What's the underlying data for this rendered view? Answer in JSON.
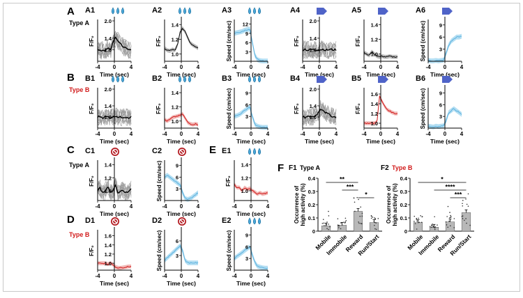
{
  "colors": {
    "black": "#000000",
    "gray_trace": "#9a9a9a",
    "typeB_red": "#d11a1a",
    "red_trace": "#e0605a",
    "speed_blue": "#76c3e8",
    "drop_blue": "#49a7d8",
    "arrow_blue": "#4f63c8",
    "stop_red": "#b3191f",
    "bar_gray": "#b8b8b8"
  },
  "icons": {
    "reward": "water-drop-icon",
    "start": "blue-arrow-icon",
    "stop": "no-entry-icon"
  },
  "rows": [
    {
      "id": "A",
      "label": "A",
      "type_label": "Type A",
      "type_color": "#000000"
    },
    {
      "id": "B",
      "label": "B",
      "type_label": "Type B",
      "type_color": "#d11a1a"
    },
    {
      "id": "C",
      "label": "C",
      "type_label": "Type A",
      "type_color": "#000000"
    },
    {
      "id": "D",
      "label": "D",
      "type_label": "Type B",
      "type_color": "#d11a1a"
    },
    {
      "id": "E",
      "label": "E",
      "type_label": "",
      "type_color": "#000000"
    },
    {
      "id": "F",
      "label": "F",
      "type_label": "",
      "type_color": "#000000"
    }
  ],
  "xlabel": "Time (sec)",
  "x_ticks": [
    "-4",
    "0",
    "4"
  ],
  "chart_data": [
    {
      "id": "A1",
      "type": "line",
      "event": "reward",
      "ylabel": "F/F₀",
      "yticks": [
        "1.0",
        "1.4",
        "2.0"
      ],
      "y_range": [
        0.6,
        2.0
      ],
      "traces": "gray+black",
      "mean": [
        1.0,
        0.95,
        1.0,
        0.97,
        1.05,
        0.98,
        1.3,
        1.4,
        1.3,
        1.2,
        1.1,
        1.05,
        1.0,
        1.0
      ]
    },
    {
      "id": "A2",
      "type": "line",
      "event": "reward",
      "ylabel": "F/F₀",
      "yticks": [
        "1.0",
        "1.2",
        "1.4"
      ],
      "y_range": [
        0.9,
        1.45
      ],
      "traces": "black-sem",
      "mean": [
        1.08,
        1.05,
        1.04,
        1.06,
        1.05,
        1.12,
        1.3,
        1.35,
        1.3,
        1.22,
        1.15,
        1.12,
        1.1,
        1.08
      ]
    },
    {
      "id": "A3",
      "type": "line",
      "event": "reward",
      "ylabel": "Speed (cm/sec)",
      "yticks": [
        "3",
        "6",
        "9",
        "12"
      ],
      "y_range": [
        0,
        13
      ],
      "traces": "blue",
      "mean": [
        9,
        9.2,
        9.4,
        9.6,
        10,
        10.2,
        10.4,
        6,
        2,
        0.5,
        0.2,
        0.1,
        0.1,
        0.1
      ]
    },
    {
      "id": "A4",
      "type": "line",
      "event": "start",
      "ylabel": "F/F₀",
      "yticks": [
        "1.0",
        "1.4",
        "2.0"
      ],
      "y_range": [
        0.6,
        2.0
      ],
      "traces": "gray+black",
      "mean": [
        1.0,
        1.02,
        0.98,
        1.0,
        1.01,
        0.99,
        1.0,
        1.0,
        1.02,
        0.98,
        1.0,
        1.01,
        1.0,
        1.0
      ]
    },
    {
      "id": "A5",
      "type": "line",
      "event": "start",
      "ylabel": "F/F₀",
      "yticks": [
        "1.0",
        "1.2",
        "1.4"
      ],
      "y_range": [
        0.9,
        1.45
      ],
      "traces": "black-sem",
      "mean": [
        1.02,
        1.0,
        0.98,
        1.03,
        1.0,
        0.97,
        0.96,
        0.97,
        0.96,
        0.96,
        0.97,
        0.96,
        0.96,
        0.96
      ]
    },
    {
      "id": "A6",
      "type": "line",
      "event": "start",
      "ylabel": "Speed (cm/sec)",
      "yticks": [
        "3",
        "6",
        "9"
      ],
      "y_range": [
        0,
        10
      ],
      "traces": "blue",
      "mean": [
        0.2,
        0.1,
        0.1,
        0.2,
        0.1,
        0.2,
        0.3,
        2,
        4,
        5,
        5.5,
        6,
        6,
        6.2
      ]
    },
    {
      "id": "B1",
      "type": "line",
      "event": "reward",
      "ylabel": "F/F₀",
      "yticks": [
        "1.0",
        "1.4",
        "2.0"
      ],
      "y_range": [
        0.6,
        2.0
      ],
      "traces": "gray+black",
      "mean": [
        1.0,
        1.02,
        0.98,
        1.0,
        1.0,
        0.99,
        1.0,
        1.05,
        1.0,
        0.98,
        1.0,
        1.0,
        0.98,
        1.0
      ]
    },
    {
      "id": "B2",
      "type": "line",
      "event": "reward",
      "ylabel": "F/F₀",
      "yticks": [
        "1.0",
        "1.2",
        "1.4"
      ],
      "y_range": [
        0.9,
        1.45
      ],
      "traces": "red-sem",
      "mean": [
        1.02,
        1.0,
        1.02,
        1.05,
        1.06,
        1.07,
        1.08,
        1.1,
        1.04,
        0.98,
        0.96,
        0.95,
        0.96,
        0.95
      ]
    },
    {
      "id": "B3",
      "type": "line",
      "event": "reward",
      "ylabel": "Speed (cm/sec)",
      "yticks": [
        "3",
        "6",
        "9"
      ],
      "y_range": [
        0,
        10
      ],
      "traces": "blue",
      "mean": [
        3,
        3.2,
        3.5,
        4,
        4.5,
        5,
        5.5,
        3,
        1,
        0.5,
        0.3,
        0.2,
        0.2,
        0.2
      ]
    },
    {
      "id": "B4",
      "type": "line",
      "event": "start",
      "ylabel": "F/F₀",
      "yticks": [
        "1.0",
        "1.4",
        "2.0"
      ],
      "y_range": [
        0.6,
        2.0
      ],
      "traces": "gray+black",
      "mean": [
        1.0,
        0.98,
        1.0,
        1.02,
        1.0,
        1.05,
        1.15,
        1.3,
        1.25,
        1.15,
        1.1,
        1.05,
        1.0,
        1.0
      ]
    },
    {
      "id": "B5",
      "type": "line",
      "event": "start",
      "ylabel": "F/F₀",
      "yticks": [
        "1.0",
        "1.2",
        "1.4",
        "1.6"
      ],
      "y_range": [
        0.9,
        1.7
      ],
      "traces": "red-sem",
      "mean": [
        1.0,
        1.0,
        1.0,
        1.0,
        1.0,
        1.02,
        1.55,
        1.45,
        1.35,
        1.28,
        1.25,
        1.22,
        1.2,
        1.2
      ]
    },
    {
      "id": "B6",
      "type": "line",
      "event": "start",
      "ylabel": "Speed (cm/sec)",
      "yticks": [
        "3",
        "6",
        "9"
      ],
      "y_range": [
        0,
        10
      ],
      "traces": "blue",
      "mean": [
        0.5,
        0.4,
        0.3,
        0.5,
        0.4,
        0.5,
        0.6,
        2,
        4,
        4.5,
        5,
        4.5,
        4,
        3.5
      ]
    },
    {
      "id": "C1",
      "type": "line",
      "event": "stop",
      "ylabel": "F/F₀",
      "yticks": [
        "1.0",
        "1.2",
        "1.4"
      ],
      "y_range": [
        0.85,
        1.45
      ],
      "traces": "gray+black",
      "mean": [
        1.0,
        1.05,
        0.95,
        1.0,
        1.08,
        0.98,
        1.0,
        1.1,
        0.95,
        1.02,
        1.0,
        0.97,
        1.0,
        1.02
      ]
    },
    {
      "id": "C2",
      "type": "line",
      "event": "stop",
      "ylabel": "Speed (cm/sec)",
      "yticks": [
        "3",
        "6",
        "9"
      ],
      "y_range": [
        0,
        10
      ],
      "traces": "blue",
      "mean": [
        6,
        6.5,
        6,
        5.5,
        5,
        4.5,
        4,
        2,
        0.5,
        0.3,
        0.5,
        1,
        1.5,
        2
      ]
    },
    {
      "id": "D1",
      "type": "line",
      "event": "stop",
      "ylabel": "F/F₀",
      "yticks": [
        "1.0",
        "1.2",
        "1.4",
        "1.6"
      ],
      "y_range": [
        0.85,
        1.7
      ],
      "traces": "red-sem",
      "mean": [
        1.0,
        1.0,
        1.0,
        1.0,
        0.98,
        1.0,
        0.97,
        0.92,
        0.9,
        0.9,
        0.91,
        0.92,
        0.93,
        0.93
      ]
    },
    {
      "id": "D2",
      "type": "line",
      "event": "stop",
      "ylabel": "Speed (cm/sec)",
      "yticks": [
        "3",
        "6"
      ],
      "y_range": [
        0,
        8
      ],
      "traces": "blue",
      "mean": [
        2,
        2.5,
        3,
        3.5,
        4,
        4.5,
        5,
        4,
        2,
        1.5,
        1.5,
        1.5,
        1.5,
        1.5
      ]
    },
    {
      "id": "E1",
      "type": "line",
      "event": "reward",
      "ylabel": "F/F₀",
      "yticks": [
        "1.0",
        "1.2",
        "1.4"
      ],
      "y_range": [
        0.85,
        1.45
      ],
      "traces": "red-sem",
      "mean": [
        1.1,
        1.05,
        1.05,
        1.0,
        1.05,
        1.02,
        1.04,
        1.0,
        0.98,
        0.95,
        0.97,
        0.95,
        0.96,
        0.97
      ]
    },
    {
      "id": "E2",
      "type": "line",
      "event": "reward",
      "ylabel": "Speed (cm/sec)",
      "yticks": [
        "3",
        "6",
        "9"
      ],
      "y_range": [
        0,
        10
      ],
      "traces": "blue",
      "mean": [
        3,
        3.5,
        4,
        4.5,
        5,
        5.5,
        6,
        4,
        2,
        1,
        0.8,
        0.6,
        0.5,
        0.5
      ]
    },
    {
      "id": "F1",
      "type": "bar",
      "type_label": "Type A",
      "type_color": "#000000",
      "ylabel": "Occurrence of\nhigh activity (%)",
      "yticks": [
        "0",
        "0.1",
        "0.2",
        "0.3",
        "0.4"
      ],
      "ylim": [
        0,
        0.4
      ],
      "categories": [
        "Mobile",
        "Immobile",
        "Reward",
        "Run/Start"
      ],
      "values": [
        0.04,
        0.045,
        0.15,
        0.065
      ],
      "sig": [
        {
          "from": 0,
          "to": 2,
          "label": "**"
        },
        {
          "from": 1,
          "to": 2,
          "label": "***"
        },
        {
          "from": 2,
          "to": 3,
          "label": "*"
        }
      ]
    },
    {
      "id": "F2",
      "type": "bar",
      "type_label": "Type B",
      "type_color": "#d11a1a",
      "ylabel": "Occurrence of\nhigh activity (%)",
      "yticks": [
        "0",
        "0.1",
        "0.2",
        "0.3",
        "0.4"
      ],
      "ylim": [
        0,
        0.4
      ],
      "categories": [
        "Mobile",
        "Immobile",
        "Reward",
        "Run/Start"
      ],
      "values": [
        0.065,
        0.03,
        0.07,
        0.14
      ],
      "sig": [
        {
          "from": 0,
          "to": 3,
          "label": "*"
        },
        {
          "from": 1,
          "to": 3,
          "label": "****"
        },
        {
          "from": 2,
          "to": 3,
          "label": "***"
        }
      ]
    }
  ]
}
